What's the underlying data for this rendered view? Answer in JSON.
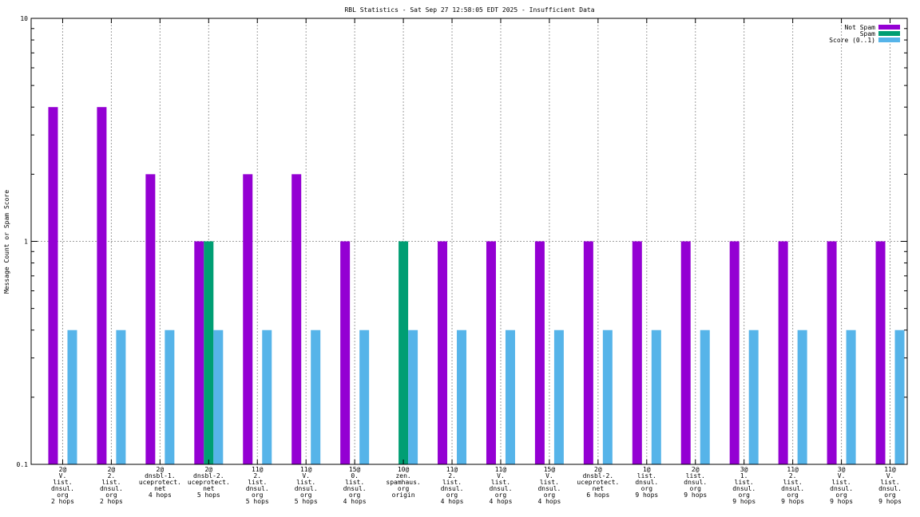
{
  "chart_data": {
    "type": "bar",
    "title": "RBL Statistics - Sat Sep 27 12:58:05 EDT 2025 - Insufficient Data",
    "ylabel": "Message Count or Spam Score",
    "xlabel": "",
    "yscale": "log",
    "ylim": [
      0.1,
      10
    ],
    "yticks": [
      {
        "value": 0.1,
        "label": "0.1"
      },
      {
        "value": 1,
        "label": "1"
      },
      {
        "value": 10,
        "label": "10"
      }
    ],
    "grid": true,
    "legend_position": "top-right",
    "categories": [
      [
        "2@",
        "V.",
        "list.",
        "dnsul.",
        "org",
        "2 hops"
      ],
      [
        "2@",
        "2.",
        "list.",
        "dnsul.",
        "org",
        "2 hops"
      ],
      [
        "2@",
        "dnsbl-1.",
        "uceprotect.",
        "net",
        "4 hops"
      ],
      [
        "2@",
        "dnsbl-2.",
        "uceprotect.",
        "net",
        "5 hops"
      ],
      [
        "11@",
        "2.",
        "list.",
        "dnsul.",
        "org",
        "5 hops"
      ],
      [
        "11@",
        "V.",
        "list.",
        "dnsul.",
        "org",
        "5 hops"
      ],
      [
        "15@",
        "0.",
        "list.",
        "dnsul.",
        "org",
        "4 hops"
      ],
      [
        "10@",
        "zen.",
        "spamhaus.",
        "org",
        "origin"
      ],
      [
        "11@",
        "2.",
        "list.",
        "dnsul.",
        "org",
        "4 hops"
      ],
      [
        "11@",
        "V.",
        "list.",
        "dnsul.",
        "org",
        "4 hops"
      ],
      [
        "15@",
        "V.",
        "list.",
        "dnsul.",
        "org",
        "4 hops"
      ],
      [
        "2@",
        "dnsbl-2.",
        "uceprotect.",
        "net",
        "6 hops"
      ],
      [
        "1@",
        "list.",
        "dnsul.",
        "org",
        "9 hops"
      ],
      [
        "2@",
        "list.",
        "dnsul.",
        "org",
        "9 hops"
      ],
      [
        "3@",
        "1.",
        "list.",
        "dnsul.",
        "org",
        "9 hops"
      ],
      [
        "11@",
        "2.",
        "list.",
        "dnsul.",
        "org",
        "9 hops"
      ],
      [
        "3@",
        "V.",
        "list.",
        "dnsul.",
        "org",
        "9 hops"
      ],
      [
        "11@",
        "V.",
        "list.",
        "dnsul.",
        "org",
        "9 hops"
      ]
    ],
    "series": [
      {
        "name": "Not Spam",
        "color": "#9400d3",
        "values": [
          4,
          4,
          2,
          1,
          2,
          2,
          1,
          0,
          1,
          1,
          1,
          1,
          1,
          1,
          1,
          1,
          1,
          1
        ]
      },
      {
        "name": "Spam",
        "color": "#009e73",
        "values": [
          0,
          0,
          0,
          1,
          0,
          0,
          0,
          1,
          0,
          0,
          0,
          0,
          0,
          0,
          0,
          0,
          0,
          0
        ]
      },
      {
        "name": "Score (0..1)",
        "color": "#56b4e9",
        "values": [
          0.4,
          0.4,
          0.4,
          0.4,
          0.4,
          0.4,
          0.4,
          0.4,
          0.4,
          0.4,
          0.4,
          0.4,
          0.4,
          0.4,
          0.4,
          0.4,
          0.4,
          0.4
        ]
      }
    ]
  }
}
